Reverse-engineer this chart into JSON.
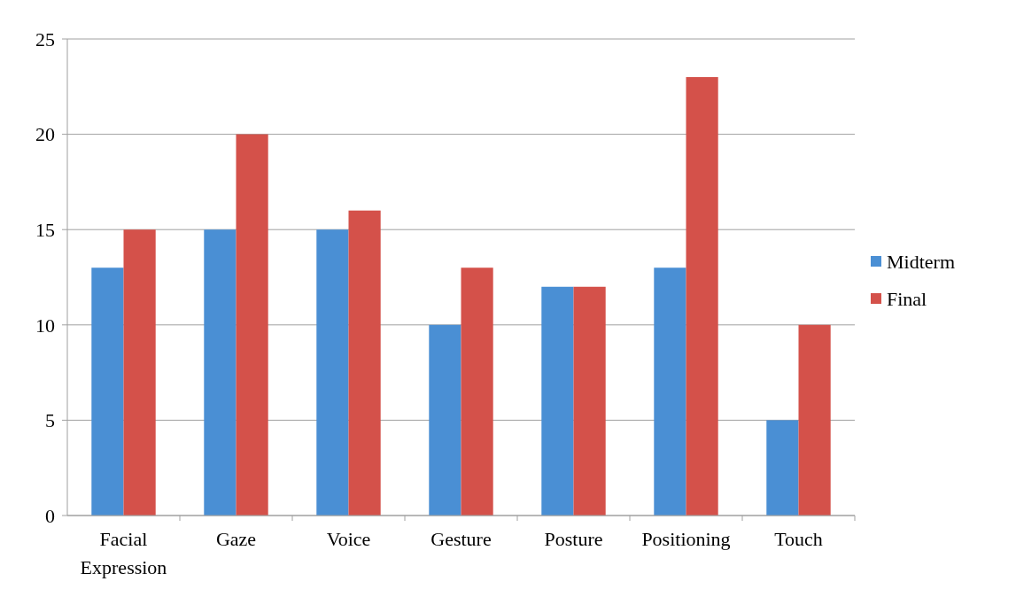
{
  "chart_data": {
    "type": "bar",
    "categories": [
      "Facial Expression",
      "Gaze",
      "Voice",
      "Gesture",
      "Posture",
      "Positioning",
      "Touch"
    ],
    "series": [
      {
        "name": "Midterm",
        "color": "#4a8fd4",
        "values": [
          13,
          15,
          15,
          10,
          12,
          13,
          5
        ]
      },
      {
        "name": "Final",
        "color": "#d4514a",
        "values": [
          15,
          20,
          16,
          13,
          12,
          23,
          10
        ]
      }
    ],
    "ylim": [
      0,
      25
    ],
    "yticks": [
      0,
      5,
      10,
      15,
      20,
      25
    ],
    "grid": "y",
    "legend": "right"
  }
}
